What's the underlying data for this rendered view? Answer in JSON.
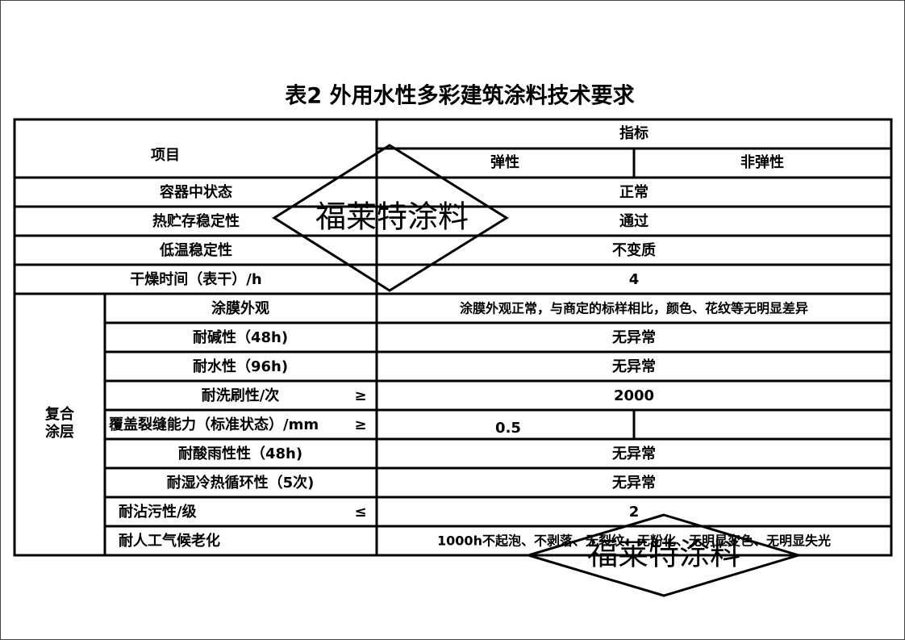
{
  "title": "表2  外用水性多彩建筑涂料技术要求",
  "table": {
    "header": {
      "item": "项目",
      "indicator": "指标",
      "elastic": "弹性",
      "non_elastic": "非弹性"
    },
    "group_label": [
      "复合",
      "涂层"
    ],
    "rows": [
      {
        "label": "容器中状态",
        "value": "正常"
      },
      {
        "label": "热贮存稳定性",
        "value": "通过"
      },
      {
        "label": "低温稳定性",
        "value": "不变质"
      },
      {
        "label": "干燥时间（表干）/h",
        "value": "4"
      },
      {
        "label": "涂膜外观",
        "value": "涂膜外观正常，与商定的标样相比，颜色、花纹等无明显差异"
      },
      {
        "label": "耐碱性（48h)",
        "value": "无异常"
      },
      {
        "label": "耐水性（96h)",
        "value": "无异常"
      },
      {
        "label": "耐洗刷性/次",
        "symbol": "≥",
        "value": "2000"
      },
      {
        "label": "覆盖裂缝能力（标准状态）/mm",
        "symbol": "≥",
        "elastic": "0.5"
      },
      {
        "label": "耐酸雨性性（48h)",
        "value": "无异常"
      },
      {
        "label": "耐湿冷热循环性（5次)",
        "value": "无异常"
      },
      {
        "label": "耐沾污性/级",
        "symbol": "≤",
        "value": "2"
      },
      {
        "label": "耐人工气候老化",
        "value": "1000h不起泡、不剥落、无裂纹、无粉化、无明显变色、无明显失光"
      }
    ]
  },
  "watermarks": [
    "福莱特涂料",
    "福莱特涂料"
  ]
}
